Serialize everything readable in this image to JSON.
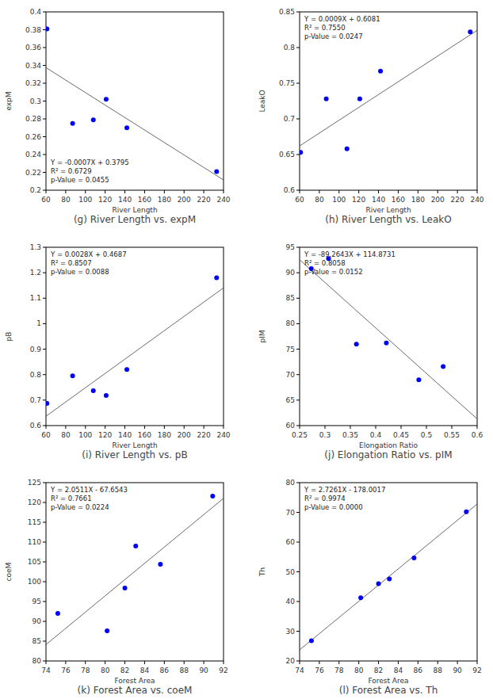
{
  "chart_data": [
    {
      "type": "scatter",
      "title": "(g) River Length vs. expM",
      "x_label": "River Length",
      "y_label": "expM",
      "x": [
        61,
        87,
        108,
        121,
        142,
        233
      ],
      "values": [
        0.381,
        0.275,
        0.279,
        0.302,
        0.27,
        0.221
      ],
      "color": "#0000ff",
      "marker": "circle",
      "xlim": [
        60,
        240
      ],
      "xticks": [
        60,
        80,
        100,
        120,
        140,
        160,
        180,
        200,
        220,
        240
      ],
      "ylim": [
        0.2,
        0.4
      ],
      "yticks": [
        0.2,
        0.22,
        0.24,
        0.26,
        0.28,
        0.3,
        0.32,
        0.34,
        0.36,
        0.38,
        0.4
      ],
      "fit": {
        "slope": -0.0007,
        "intercept": 0.3795
      },
      "annotations": [
        "Y = -0.0007X + 0.3795",
        "R² = 0.6729",
        "p-Value = 0.0455"
      ]
    },
    {
      "type": "scatter",
      "title": "(h) River Length vs. LeakO",
      "x_label": "River Length",
      "y_label": "LeakO",
      "x": [
        61,
        87,
        108,
        121,
        142,
        233
      ],
      "values": [
        0.653,
        0.728,
        0.658,
        0.728,
        0.767,
        0.822
      ],
      "color": "#0000ff",
      "marker": "circle",
      "xlim": [
        60,
        240
      ],
      "xticks": [
        60,
        80,
        100,
        120,
        140,
        160,
        180,
        200,
        220,
        240
      ],
      "ylim": [
        0.6,
        0.85
      ],
      "yticks": [
        0.6,
        0.65,
        0.7,
        0.75,
        0.8,
        0.85
      ],
      "fit": {
        "slope": 0.0009,
        "intercept": 0.6081
      },
      "annotations": [
        "Y = 0.0009X + 0.6081",
        "R² = 0.7550",
        "p-Value = 0.0247"
      ]
    },
    {
      "type": "scatter",
      "title": "(i) River Length vs. pB",
      "x_label": "River Length",
      "y_label": "pB",
      "x": [
        61,
        87,
        108,
        121,
        142,
        233
      ],
      "values": [
        0.687,
        0.795,
        0.737,
        0.718,
        0.82,
        1.18
      ],
      "color": "#0000ff",
      "marker": "circle",
      "xlim": [
        60,
        240
      ],
      "xticks": [
        60,
        80,
        100,
        120,
        140,
        160,
        180,
        200,
        220,
        240
      ],
      "ylim": [
        0.6,
        1.3
      ],
      "yticks": [
        0.6,
        0.7,
        0.8,
        0.9,
        1,
        1.1,
        1.2,
        1.3
      ],
      "fit": {
        "slope": 0.0028,
        "intercept": 0.4687
      },
      "annotations": [
        "Y = 0.0028X + 0.4687",
        "R² = 0.8507",
        "p-Value = 0.0088"
      ]
    },
    {
      "type": "scatter",
      "title": "(j) Elongation Ratio vs. pIM",
      "x_label": "Elongation Ratio",
      "y_label": "pIM",
      "x": [
        0.273,
        0.307,
        0.362,
        0.421,
        0.485,
        0.533
      ],
      "values": [
        90.8,
        92.8,
        76.0,
        76.2,
        69.0,
        71.6
      ],
      "color": "#0000ff",
      "marker": "circle",
      "xlim": [
        0.25,
        0.6
      ],
      "xticks": [
        0.25,
        0.3,
        0.35,
        0.4,
        0.45,
        0.5,
        0.55,
        0.6
      ],
      "ylim": [
        60,
        95
      ],
      "yticks": [
        60,
        65,
        70,
        75,
        80,
        85,
        90,
        95
      ],
      "fit": {
        "slope": -89.2643,
        "intercept": 114.8731
      },
      "annotations": [
        "Y = -89.2643X + 114.8731",
        "R² = 0.8058",
        "p-Value = 0.0152"
      ]
    },
    {
      "type": "scatter",
      "title": "(k) Forest Area vs. coeM",
      "x_label": "Forest Area",
      "y_label": "coeM",
      "x": [
        75.2,
        80.2,
        82.0,
        83.1,
        85.6,
        90.9
      ],
      "values": [
        92.0,
        87.6,
        98.4,
        109.0,
        104.4,
        121.6
      ],
      "color": "#0000ff",
      "marker": "circle",
      "xlim": [
        74,
        92
      ],
      "xticks": [
        74,
        76,
        78,
        80,
        82,
        84,
        86,
        88,
        90,
        92
      ],
      "ylim": [
        80,
        125
      ],
      "yticks": [
        80,
        85,
        90,
        95,
        100,
        105,
        110,
        115,
        120,
        125
      ],
      "fit": {
        "slope": 2.0511,
        "intercept": -67.6543
      },
      "annotations": [
        "Y = 2.0511X - 67.6543",
        "R² = 0.7661",
        "p-Value = 0.0224"
      ]
    },
    {
      "type": "scatter",
      "title": "(l) Forest Area vs. Th",
      "x_label": "Forest Area",
      "y_label": "Th",
      "x": [
        75.2,
        80.2,
        82.0,
        83.1,
        85.6,
        90.9
      ],
      "values": [
        26.8,
        41.3,
        46.0,
        47.6,
        54.7,
        70.2
      ],
      "color": "#0000ff",
      "marker": "circle",
      "xlim": [
        74,
        92
      ],
      "xticks": [
        74,
        76,
        78,
        80,
        82,
        84,
        86,
        88,
        90,
        92
      ],
      "ylim": [
        20,
        80
      ],
      "yticks": [
        20,
        30,
        40,
        50,
        60,
        70,
        80
      ],
      "fit": {
        "slope": 2.7261,
        "intercept": -178.0017
      },
      "annotations": [
        "Y = 2.7261X - 178.0017",
        "R² = 0.9974",
        "p-Value = 0.0000"
      ]
    }
  ]
}
